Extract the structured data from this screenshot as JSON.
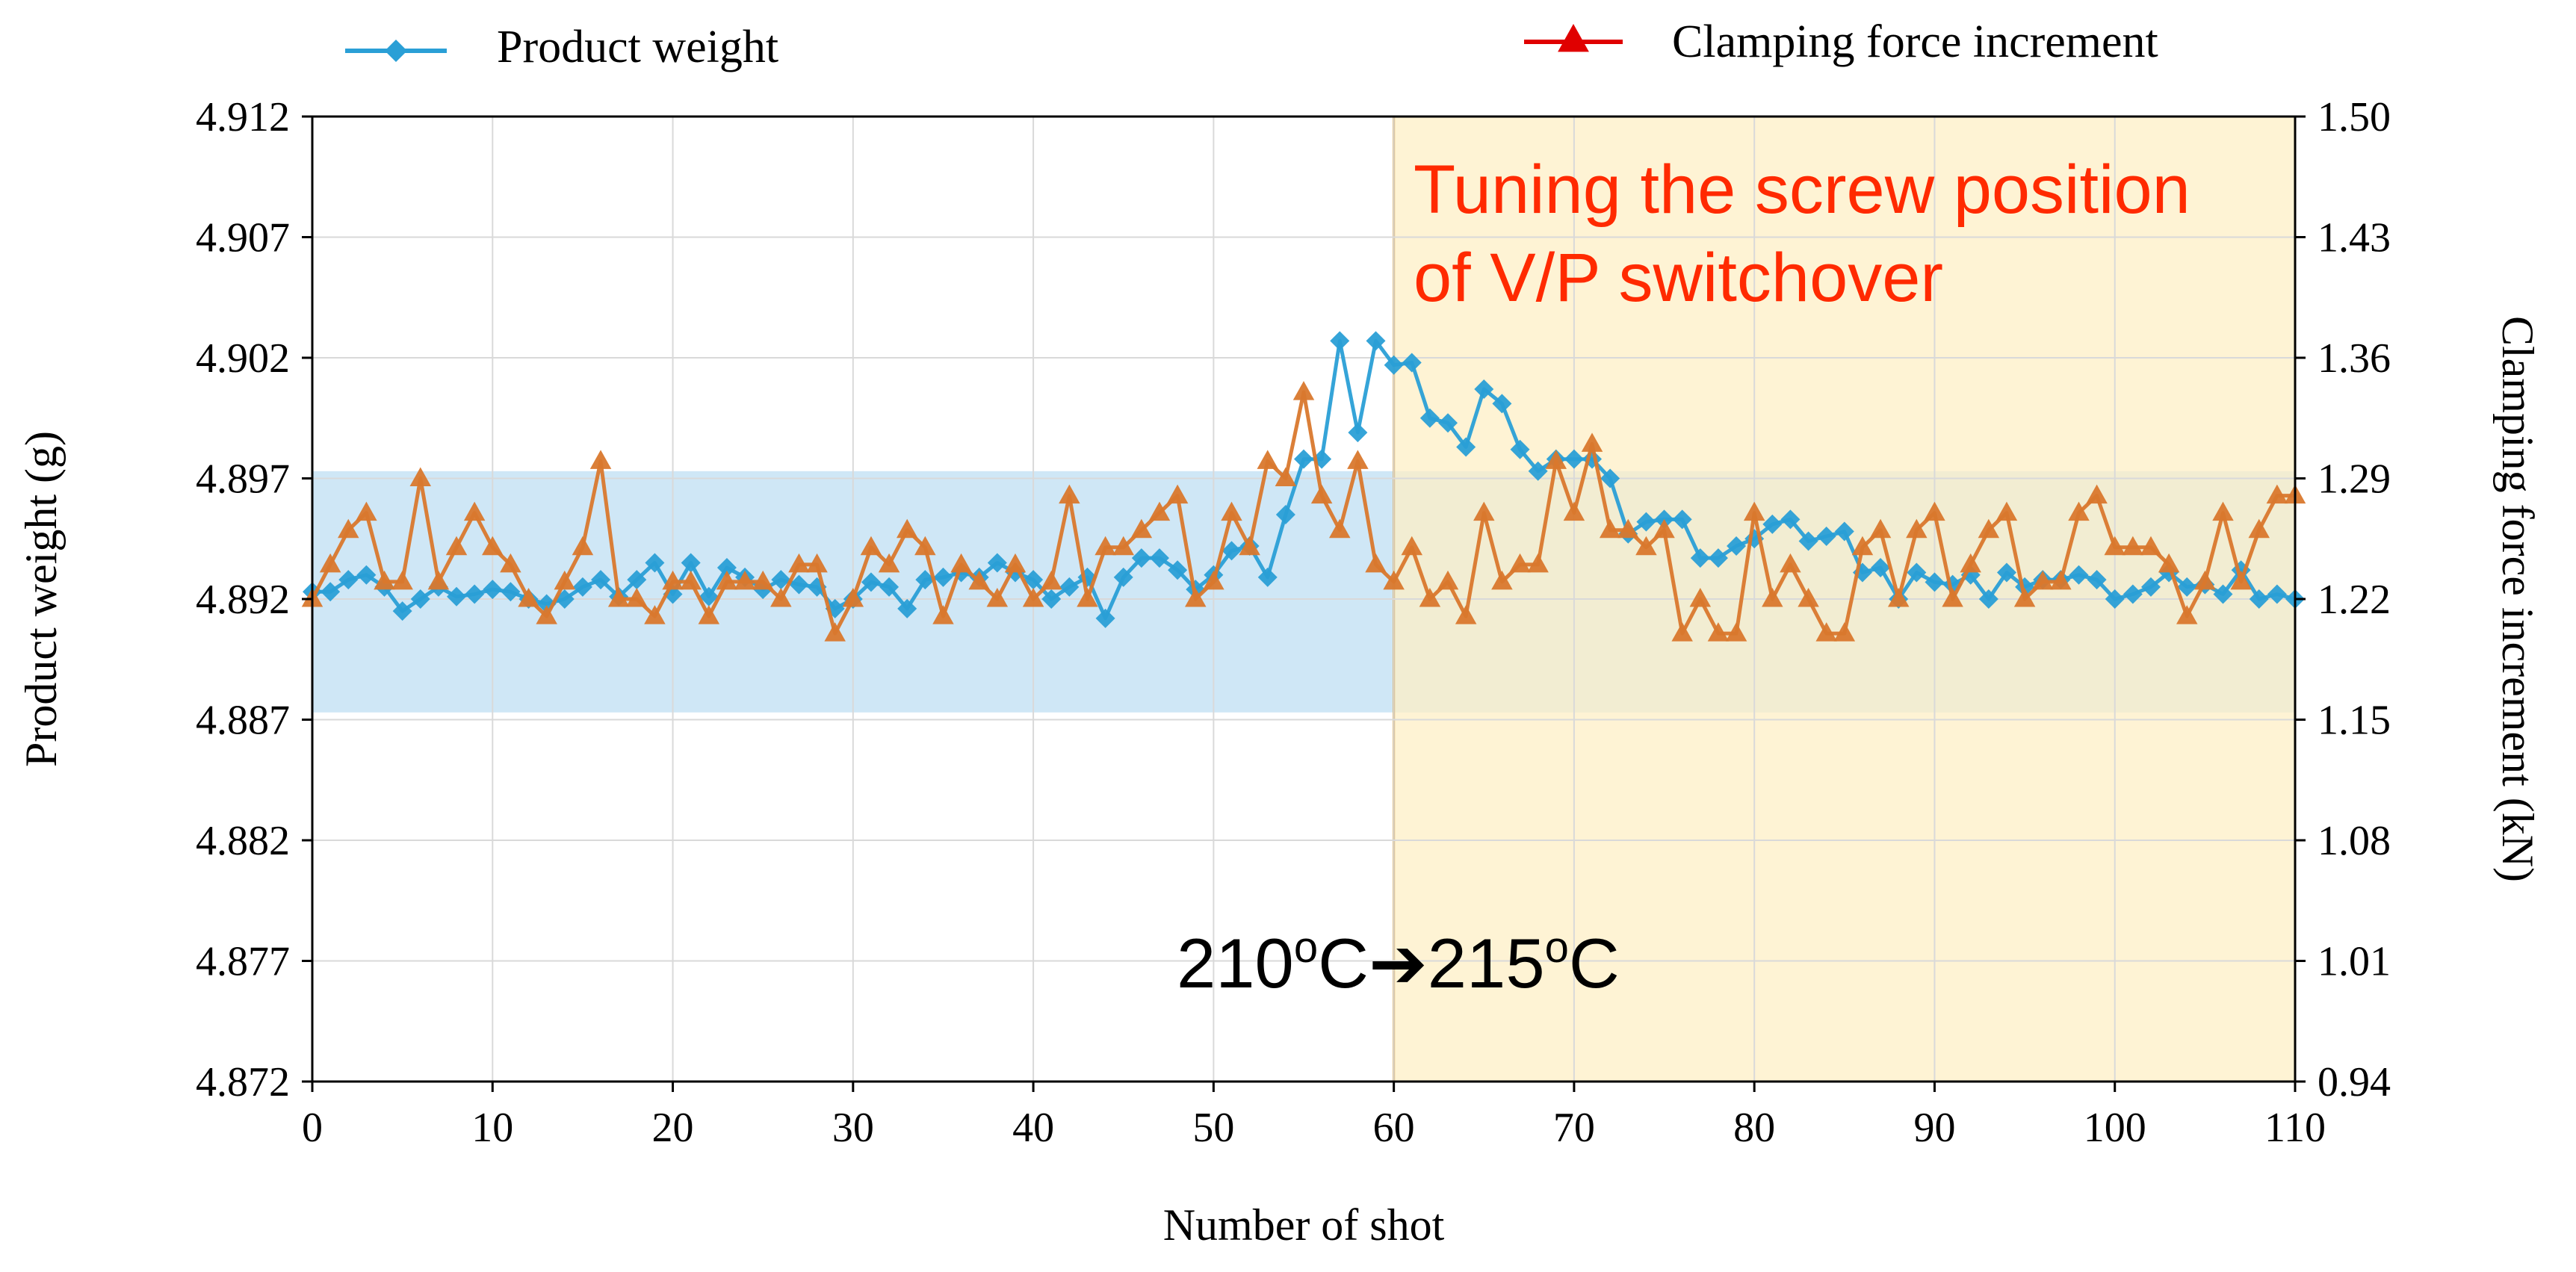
{
  "chart_data": {
    "type": "line",
    "title": "",
    "xlabel": "Number of shot",
    "ylabel_left": "Product weight (g)",
    "ylabel_right": "Clamping force increment (kN)",
    "xlim": [
      0,
      110
    ],
    "ylim_left": [
      4.872,
      4.912
    ],
    "ylim_right": [
      0.94,
      1.5
    ],
    "x_ticks": [
      "0",
      "10",
      "20",
      "30",
      "40",
      "50",
      "60",
      "70",
      "80",
      "90",
      "100",
      "110"
    ],
    "y_ticks_left": [
      "4.872",
      "4.877",
      "4.882",
      "4.887",
      "4.892",
      "4.897",
      "4.902",
      "4.907",
      "4.912"
    ],
    "y_ticks_right": [
      "0.94",
      "1.01",
      "1.08",
      "1.15",
      "1.22",
      "1.29",
      "1.36",
      "1.43",
      "1.50"
    ],
    "grid": true,
    "legend_position": "top",
    "colors": {
      "product_weight": "#2a9fd6",
      "clamping_force": "#d9782d",
      "legend_clamping_marker": "#e00000",
      "band": "#a8d3ef",
      "tuning_region": "#fdefc6",
      "tuning_border": "#d9a13a",
      "annotation": "#ff2a00",
      "grid": "#d9d9d9"
    },
    "bands": [
      {
        "axis": "left",
        "y_range": [
          4.8873,
          4.8973
        ],
        "x_range": [
          0,
          110
        ],
        "color": "#a8d3ef"
      }
    ],
    "regions": [
      {
        "x_range": [
          60,
          110
        ],
        "color": "#fdefc6"
      }
    ],
    "annotations": [
      {
        "text": "Tuning the screw position\nof V/P switchover",
        "x": 61,
        "y": 4.9085,
        "axis": "left",
        "color": "#ff2a00"
      },
      {
        "text_parts": [
          "210",
          "o",
          "C",
          "➔",
          "215",
          "o",
          "C"
        ],
        "x": 60,
        "y": 4.8772,
        "axis": "left"
      }
    ],
    "series": [
      {
        "name": "Product weight",
        "axis": "left",
        "marker": "diamond",
        "color": "#2a9fd6",
        "x": [
          0,
          1,
          2,
          3,
          4,
          5,
          6,
          7,
          8,
          9,
          10,
          11,
          12,
          13,
          14,
          15,
          16,
          17,
          18,
          19,
          20,
          21,
          22,
          23,
          24,
          25,
          26,
          27,
          28,
          29,
          30,
          31,
          32,
          33,
          34,
          35,
          36,
          37,
          38,
          39,
          40,
          41,
          42,
          43,
          44,
          45,
          46,
          47,
          48,
          49,
          50,
          51,
          52,
          53,
          54,
          55,
          56,
          57,
          58,
          59,
          60,
          61,
          62,
          63,
          64,
          65,
          66,
          67,
          68,
          69,
          70,
          71,
          72,
          73,
          74,
          75,
          76,
          77,
          78,
          79,
          80,
          81,
          82,
          83,
          84,
          85,
          86,
          87,
          88,
          89,
          90,
          91,
          92,
          93,
          94,
          95,
          96,
          97,
          98,
          99,
          100,
          101,
          102,
          103,
          104,
          105,
          106,
          107,
          108,
          109,
          110
        ],
        "values": [
          4.8923,
          4.8923,
          4.8928,
          4.893,
          4.8925,
          4.8915,
          4.892,
          4.8925,
          4.8921,
          4.8922,
          4.8924,
          4.8923,
          4.892,
          4.8918,
          4.892,
          4.8925,
          4.8928,
          4.8921,
          4.8928,
          4.8935,
          4.8922,
          4.8935,
          4.8921,
          4.8933,
          4.8929,
          4.8924,
          4.8928,
          4.8926,
          4.8925,
          4.8916,
          4.892,
          4.8927,
          4.8925,
          4.8916,
          4.8928,
          4.8929,
          4.8931,
          4.8929,
          4.8935,
          4.8931,
          4.8928,
          4.892,
          4.8925,
          4.8929,
          4.8912,
          4.8929,
          4.8937,
          4.8937,
          4.8932,
          4.8924,
          4.893,
          4.894,
          4.8942,
          4.8929,
          4.8955,
          4.8978,
          4.8978,
          4.9027,
          4.8989,
          4.9027,
          4.9017,
          4.9018,
          4.8995,
          4.8993,
          4.8983,
          4.9007,
          4.9001,
          4.8982,
          4.8973,
          4.8978,
          4.8978,
          4.8978,
          4.897,
          4.8947,
          4.8952,
          4.8953,
          4.8953,
          4.8937,
          4.8937,
          4.8942,
          4.8945,
          4.8951,
          4.8953,
          4.8944,
          4.8946,
          4.8948,
          4.8931,
          4.8933,
          4.892,
          4.8931,
          4.8927,
          4.8926,
          4.893,
          4.892,
          4.8931,
          4.8925,
          4.8928,
          4.8928,
          4.893,
          4.8928,
          4.892,
          4.8922,
          4.8925,
          4.8931,
          4.8925,
          4.8926,
          4.8922,
          4.8932,
          4.892,
          4.8922,
          4.892
        ]
      },
      {
        "name": "Clamping force increment",
        "axis": "right",
        "marker": "triangle",
        "color": "#d9782d",
        "x": [
          0,
          1,
          2,
          3,
          4,
          5,
          6,
          7,
          8,
          9,
          10,
          11,
          12,
          13,
          14,
          15,
          16,
          17,
          18,
          19,
          20,
          21,
          22,
          23,
          24,
          25,
          26,
          27,
          28,
          29,
          30,
          31,
          32,
          33,
          34,
          35,
          36,
          37,
          38,
          39,
          40,
          41,
          42,
          43,
          44,
          45,
          46,
          47,
          48,
          49,
          50,
          51,
          52,
          53,
          54,
          55,
          56,
          57,
          58,
          59,
          60,
          61,
          62,
          63,
          64,
          65,
          66,
          67,
          68,
          69,
          70,
          71,
          72,
          73,
          74,
          75,
          76,
          77,
          78,
          79,
          80,
          81,
          82,
          83,
          84,
          85,
          86,
          87,
          88,
          89,
          90,
          91,
          92,
          93,
          94,
          95,
          96,
          97,
          98,
          99,
          100,
          101,
          102,
          103,
          104,
          105,
          106,
          107,
          108,
          109,
          110
        ],
        "values": [
          1.22,
          1.24,
          1.26,
          1.27,
          1.23,
          1.23,
          1.29,
          1.23,
          1.25,
          1.27,
          1.25,
          1.24,
          1.22,
          1.21,
          1.23,
          1.25,
          1.3,
          1.22,
          1.22,
          1.21,
          1.23,
          1.23,
          1.21,
          1.23,
          1.23,
          1.23,
          1.22,
          1.24,
          1.24,
          1.2,
          1.22,
          1.25,
          1.24,
          1.26,
          1.25,
          1.21,
          1.24,
          1.23,
          1.22,
          1.24,
          1.22,
          1.23,
          1.28,
          1.22,
          1.25,
          1.25,
          1.26,
          1.27,
          1.28,
          1.22,
          1.23,
          1.27,
          1.25,
          1.3,
          1.29,
          1.34,
          1.28,
          1.26,
          1.3,
          1.24,
          1.23,
          1.25,
          1.22,
          1.23,
          1.21,
          1.27,
          1.23,
          1.24,
          1.24,
          1.3,
          1.27,
          1.31,
          1.26,
          1.26,
          1.25,
          1.26,
          1.2,
          1.22,
          1.2,
          1.2,
          1.27,
          1.22,
          1.24,
          1.22,
          1.2,
          1.2,
          1.25,
          1.26,
          1.22,
          1.26,
          1.27,
          1.22,
          1.24,
          1.26,
          1.27,
          1.22,
          1.23,
          1.23,
          1.27,
          1.28,
          1.25,
          1.25,
          1.25,
          1.24,
          1.21,
          1.23,
          1.27,
          1.23,
          1.26,
          1.28,
          1.28
        ]
      }
    ]
  }
}
